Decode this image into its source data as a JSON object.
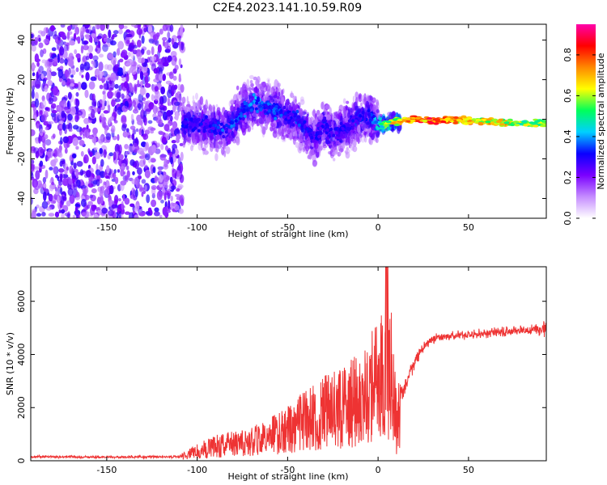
{
  "title": "C2E4.2023.141.10.59.R09",
  "top_panel": {
    "xlabel": "Height of straight line (km)",
    "ylabel": "Frequency (Hz)",
    "xlim": [
      -192,
      93
    ],
    "ylim": [
      -50,
      48
    ],
    "xticks": [
      "-150",
      "-100",
      "-50",
      "0",
      "50"
    ],
    "xtick_values": [
      -150,
      -100,
      -50,
      0,
      50
    ],
    "yticks": [
      "-40",
      "-20",
      "0",
      "20",
      "40"
    ],
    "ytick_values": [
      -40,
      -20,
      0,
      20,
      40
    ]
  },
  "colorbar": {
    "label": "Normalized spectral amplitude",
    "ticks": [
      "0.0",
      "0.2",
      "0.4",
      "0.6",
      "0.8"
    ],
    "tick_values": [
      0.0,
      0.2,
      0.4,
      0.6,
      0.8
    ],
    "range": [
      0,
      0.95
    ],
    "colors": [
      "#ffffff",
      "#c58cff",
      "#7a00ff",
      "#0a00ff",
      "#00d0ff",
      "#00ff5a",
      "#ffff00",
      "#ff8800",
      "#ff0000",
      "#ff00aa"
    ]
  },
  "bottom_panel": {
    "xlabel": "Height of straight line (km)",
    "ylabel": "SNR (10 * v/v)",
    "xlim": [
      -192,
      93
    ],
    "ylim": [
      0,
      7300
    ],
    "xticks": [
      "-150",
      "-100",
      "-50",
      "0",
      "50"
    ],
    "xtick_values": [
      -150,
      -100,
      -50,
      0,
      50
    ],
    "yticks": [
      "0",
      "2000",
      "4000",
      "6000"
    ],
    "ytick_values": [
      0,
      2000,
      4000,
      6000
    ],
    "line_color": "#ee3333"
  },
  "chart_data": [
    {
      "type": "heatmap",
      "title": "C2E4.2023.141.10.59.R09",
      "xlabel": "Height of straight line (km)",
      "ylabel": "Frequency (Hz)",
      "xlim": [
        -192,
        93
      ],
      "ylim": [
        -50,
        48
      ],
      "colorbar_label": "Normalized spectral amplitude",
      "colorbar_range": [
        0,
        0.95
      ],
      "ridge": {
        "x": [
          -105,
          -95,
          -85,
          -75,
          -68,
          -62,
          -55,
          -50,
          -45,
          -40,
          -35,
          -30,
          -25,
          -20,
          -15,
          -10,
          -5,
          0,
          5,
          10,
          20,
          30,
          40,
          50,
          60,
          70,
          80,
          90
        ],
        "frequency": [
          -2,
          -3,
          -6,
          4,
          8,
          6,
          4,
          2,
          0,
          -5,
          -10,
          -3,
          -8,
          -6,
          -2,
          0,
          2,
          -3,
          -2,
          -1,
          0,
          -1,
          0,
          -1,
          -1,
          -2,
          -2,
          -2
        ],
        "amplitude": [
          0.3,
          0.3,
          0.35,
          0.35,
          0.4,
          0.35,
          0.35,
          0.3,
          0.35,
          0.3,
          0.3,
          0.3,
          0.3,
          0.3,
          0.3,
          0.3,
          0.35,
          0.45,
          0.6,
          0.7,
          0.8,
          0.82,
          0.78,
          0.72,
          0.7,
          0.68,
          0.6,
          0.6
        ]
      },
      "notes_noise_region_x": [
        -192,
        -108
      ]
    },
    {
      "type": "line",
      "xlabel": "Height of straight line (km)",
      "ylabel": "SNR (10 * v/v)",
      "xlim": [
        -192,
        93
      ],
      "ylim": [
        0,
        7300
      ],
      "series": [
        {
          "x": [
            -192,
            -180,
            -160,
            -140,
            -120,
            -110,
            -100,
            -90,
            -80,
            -70,
            -60,
            -50,
            -40,
            -30,
            -20,
            -10,
            -5,
            0,
            3,
            5,
            8,
            10,
            15,
            20,
            25,
            30,
            40,
            50,
            60,
            70,
            80,
            90,
            93
          ],
          "values": [
            150,
            150,
            140,
            140,
            150,
            140,
            400,
            600,
            700,
            800,
            1000,
            1300,
            1700,
            2000,
            2200,
            2600,
            3000,
            3200,
            5000,
            6500,
            3500,
            2000,
            2800,
            3700,
            4300,
            4600,
            4700,
            4750,
            4800,
            4850,
            4900,
            4950,
            5000
          ],
          "spread": [
            60,
            60,
            60,
            60,
            60,
            60,
            300,
            400,
            450,
            600,
            800,
            1000,
            1500,
            1500,
            1800,
            2500,
            3000,
            3200,
            2500,
            2000,
            1500,
            1000,
            500,
            300,
            250,
            200,
            200,
            200,
            200,
            200,
            200,
            250,
            400
          ]
        }
      ]
    }
  ]
}
